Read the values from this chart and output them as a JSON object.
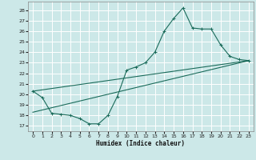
{
  "xlabel": "Humidex (Indice chaleur)",
  "bg_color": "#cce8e8",
  "grid_color": "#ffffff",
  "line_color": "#1a6b5a",
  "xlim": [
    -0.5,
    23.5
  ],
  "ylim": [
    16.5,
    28.8
  ],
  "yticks": [
    17,
    18,
    19,
    20,
    21,
    22,
    23,
    24,
    25,
    26,
    27,
    28
  ],
  "xticks": [
    0,
    1,
    2,
    3,
    4,
    5,
    6,
    7,
    8,
    9,
    10,
    11,
    12,
    13,
    14,
    15,
    16,
    17,
    18,
    19,
    20,
    21,
    22,
    23
  ],
  "line1_x": [
    0,
    1,
    2,
    3,
    4,
    5,
    6,
    7,
    8,
    9,
    10,
    11,
    12,
    13,
    14,
    15,
    16,
    17,
    18,
    19,
    20,
    21,
    22,
    23
  ],
  "line1_y": [
    20.3,
    19.7,
    18.2,
    18.1,
    18.0,
    17.7,
    17.2,
    17.2,
    18.0,
    19.8,
    22.3,
    22.6,
    23.0,
    24.0,
    26.0,
    27.2,
    28.2,
    26.3,
    26.2,
    26.2,
    24.7,
    23.6,
    23.3,
    23.2
  ],
  "line2_x": [
    0,
    23
  ],
  "line2_y": [
    18.3,
    23.2
  ],
  "line3_x": [
    0,
    23
  ],
  "line3_y": [
    20.3,
    23.2
  ]
}
